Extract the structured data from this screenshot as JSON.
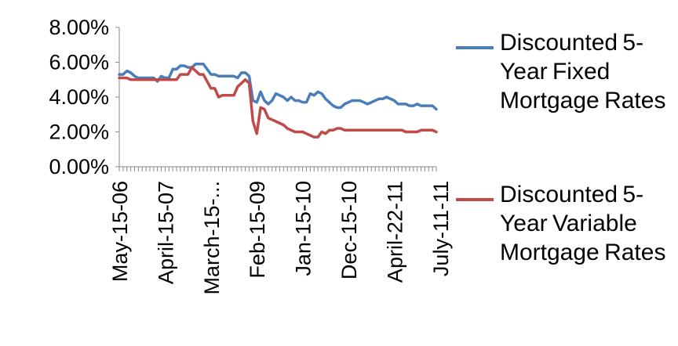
{
  "chart_data": {
    "type": "line",
    "title": "",
    "xlabel": "",
    "ylabel": "",
    "ylim": [
      0,
      0.08
    ],
    "y_ticks": [
      "0.00%",
      "2.00%",
      "4.00%",
      "6.00%",
      "8.00%"
    ],
    "y_tick_values": [
      0,
      0.02,
      0.04,
      0.06,
      0.08
    ],
    "x_ticks": [
      "May-15-06",
      "April-15-07",
      "March-15-...",
      "Feb-15-09",
      "Jan-15-10",
      "Dec-15-10",
      "April-22-11",
      "July-11-11"
    ],
    "x_tick_index": [
      0,
      12,
      24,
      36,
      48,
      60,
      72,
      84
    ],
    "grid": false,
    "legend_position": "right",
    "series": [
      {
        "name": "Discounted 5-Year Fixed Mortgage Rates",
        "color": "#4a7ebb",
        "values": [
          0.053,
          0.053,
          0.055,
          0.054,
          0.052,
          0.051,
          0.051,
          0.051,
          0.051,
          0.051,
          0.049,
          0.052,
          0.051,
          0.051,
          0.056,
          0.056,
          0.058,
          0.058,
          0.057,
          0.057,
          0.059,
          0.059,
          0.059,
          0.056,
          0.053,
          0.053,
          0.052,
          0.052,
          0.052,
          0.052,
          0.052,
          0.051,
          0.054,
          0.054,
          0.052,
          0.038,
          0.037,
          0.043,
          0.038,
          0.036,
          0.038,
          0.042,
          0.041,
          0.04,
          0.038,
          0.04,
          0.038,
          0.038,
          0.037,
          0.037,
          0.042,
          0.041,
          0.043,
          0.042,
          0.039,
          0.037,
          0.035,
          0.034,
          0.034,
          0.036,
          0.037,
          0.038,
          0.038,
          0.038,
          0.037,
          0.036,
          0.037,
          0.038,
          0.039,
          0.039,
          0.04,
          0.039,
          0.038,
          0.036,
          0.036,
          0.036,
          0.035,
          0.035,
          0.036,
          0.035,
          0.035,
          0.035,
          0.035,
          0.033
        ]
      },
      {
        "name": "Discounted 5-Year Variable Mortgage Rates",
        "color": "#be4b48",
        "values": [
          0.051,
          0.051,
          0.051,
          0.05,
          0.05,
          0.05,
          0.05,
          0.05,
          0.05,
          0.05,
          0.05,
          0.05,
          0.05,
          0.05,
          0.05,
          0.05,
          0.053,
          0.053,
          0.053,
          0.057,
          0.055,
          0.053,
          0.053,
          0.049,
          0.045,
          0.045,
          0.04,
          0.041,
          0.041,
          0.041,
          0.041,
          0.046,
          0.048,
          0.05,
          0.048,
          0.026,
          0.019,
          0.034,
          0.033,
          0.028,
          0.027,
          0.026,
          0.025,
          0.024,
          0.022,
          0.021,
          0.02,
          0.02,
          0.02,
          0.019,
          0.018,
          0.017,
          0.017,
          0.02,
          0.019,
          0.021,
          0.021,
          0.022,
          0.022,
          0.021,
          0.021,
          0.021,
          0.021,
          0.021,
          0.021,
          0.021,
          0.021,
          0.021,
          0.021,
          0.021,
          0.021,
          0.021,
          0.021,
          0.021,
          0.021,
          0.02,
          0.02,
          0.02,
          0.02,
          0.021,
          0.021,
          0.021,
          0.021,
          0.02
        ]
      }
    ]
  },
  "legend": {
    "fixed_label": "Discounted 5-Year Fixed Mortgage Rates",
    "variable_label": "Discounted 5-Year Variable Mortgage Rates"
  }
}
